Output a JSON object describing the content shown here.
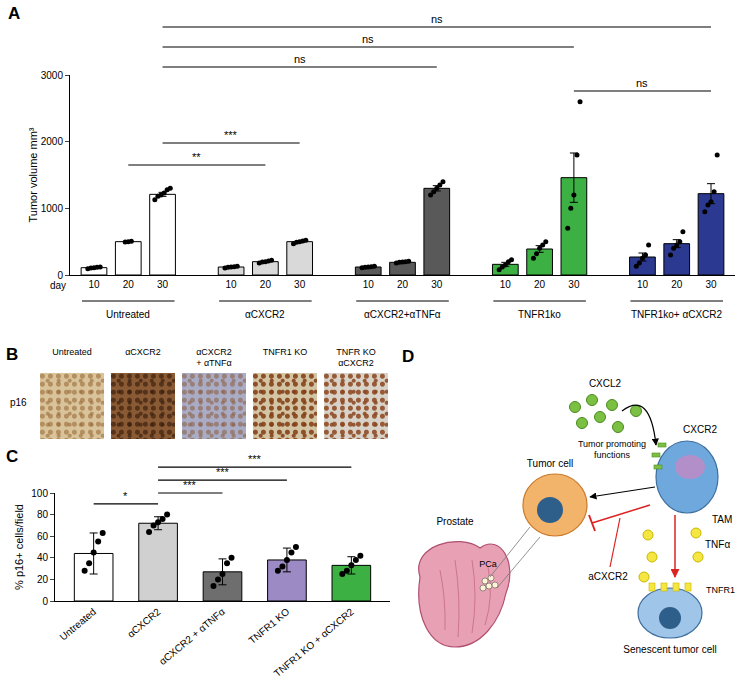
{
  "chart_data": [
    {
      "panel": "A",
      "type": "bar",
      "ylabel": "Tumor volume mm³",
      "xlabel": "day",
      "ylim": [
        0,
        3000
      ],
      "yticks": [
        0,
        1000,
        2000,
        3000
      ],
      "grid": false,
      "marker": "circle",
      "categories": [
        "10",
        "20",
        "30"
      ],
      "series": [
        {
          "name": "Untreated",
          "colors": [
            "#ffffff",
            "#ffffff",
            "#ffffff"
          ],
          "values": [
            110,
            500,
            1210
          ],
          "errors": [
            6,
            4,
            30
          ],
          "points": [
            [
              95,
              105,
              110,
              115,
              120
            ],
            [
              495,
              500,
              505
            ],
            [
              1130,
              1180,
              1200,
              1230,
              1280,
              1300
            ]
          ]
        },
        {
          "name": "αCXCR2",
          "colors": [
            "#d9d9d9",
            "#d9d9d9",
            "#d9d9d9"
          ],
          "values": [
            120,
            200,
            500
          ],
          "errors": [
            5,
            8,
            10
          ],
          "points": [
            [
              105,
              115,
              120,
              125,
              130
            ],
            [
              180,
              195,
              200,
              210,
              220
            ],
            [
              470,
              490,
              500,
              510,
              520
            ]
          ]
        },
        {
          "name": "αCXCR2+αTNFα",
          "colors": [
            "#595959",
            "#595959",
            "#595959"
          ],
          "values": [
            120,
            190,
            1300
          ],
          "errors": [
            4,
            5,
            40
          ],
          "points": [
            [
              110,
              115,
              120,
              125,
              130
            ],
            [
              180,
              190,
              195,
              200,
              205
            ],
            [
              1200,
              1250,
              1300,
              1350,
              1400
            ]
          ]
        },
        {
          "name": "TNFR1ko",
          "colors": [
            "#3cb043",
            "#3cb043",
            "#3cb043"
          ],
          "values": [
            160,
            390,
            1460
          ],
          "errors": [
            30,
            50,
            370
          ],
          "points": [
            [
              80,
              120,
              150,
              200,
              230
            ],
            [
              250,
              320,
              400,
              450,
              500
            ],
            [
              700,
              1000,
              1200,
              1800,
              2600
            ]
          ]
        },
        {
          "name": "TNFR1ko+ αCXCR2",
          "colors": [
            "#2b3990",
            "#2b3990",
            "#2b3990"
          ],
          "values": [
            270,
            470,
            1220
          ],
          "errors": [
            60,
            60,
            150
          ],
          "points": [
            [
              130,
              180,
              250,
              300,
              450
            ],
            [
              300,
              400,
              450,
              500,
              650
            ],
            [
              950,
              1050,
              1100,
              1250,
              1800
            ]
          ]
        }
      ],
      "comparisons": [
        {
          "from": [
            0,
            1
          ],
          "to": [
            1,
            1
          ],
          "label": "**"
        },
        {
          "from": [
            0,
            2
          ],
          "to": [
            1,
            2
          ],
          "label": "***"
        },
        {
          "from": [
            3,
            2
          ],
          "to": [
            4,
            2
          ],
          "label": "ns"
        },
        {
          "from": [
            0,
            2
          ],
          "to": [
            2,
            2
          ],
          "label": "ns"
        },
        {
          "from": [
            0,
            2
          ],
          "to": [
            3,
            2
          ],
          "label": "ns"
        },
        {
          "from": [
            0,
            2
          ],
          "to": [
            4,
            2
          ],
          "label": "ns"
        }
      ]
    },
    {
      "panel": "C",
      "type": "bar",
      "ylabel": "% p16+ cells/field",
      "ylim": [
        0,
        100
      ],
      "yticks": [
        0,
        20,
        40,
        60,
        80,
        100
      ],
      "grid": false,
      "marker": "circle",
      "categories": [
        "Untreated",
        "αCXCR2",
        "αCXCR2 + αTNFα",
        "TNFR1 KO",
        "TNFR1 KO + αCXCR2"
      ],
      "values": [
        44,
        72,
        27,
        38,
        33
      ],
      "errors": [
        19,
        6,
        12,
        11,
        8
      ],
      "colors": [
        "#ffffff",
        "#d0d0d0",
        "#6e6e6e",
        "#9b8ac4",
        "#3cb043"
      ],
      "points": [
        [
          28,
          35,
          45,
          55,
          63
        ],
        [
          64,
          70,
          73,
          76,
          80
        ],
        [
          14,
          20,
          25,
          35,
          40
        ],
        [
          28,
          32,
          38,
          45,
          50
        ],
        [
          25,
          28,
          33,
          38,
          42
        ]
      ],
      "comparisons": [
        {
          "from": 0,
          "to": 1,
          "label": "*"
        },
        {
          "from": 1,
          "to": 2,
          "label": "***"
        },
        {
          "from": 1,
          "to": 3,
          "label": "***"
        },
        {
          "from": 1,
          "to": 4,
          "label": "***"
        }
      ]
    }
  ],
  "image_panel": {
    "panel": "B",
    "row_label": "p16",
    "columns": [
      [
        "Untreated"
      ],
      [
        "αCXCR2"
      ],
      [
        "αCXCR2",
        "+ αTNFα"
      ],
      [
        "TNFR1 KO"
      ],
      [
        "TNFR KO",
        "αCXCR2"
      ]
    ]
  },
  "diagram": {
    "panel": "D",
    "texts": {
      "cxcl2": "CXCL2",
      "cxcr2": "CXCR2",
      "tumor_promoting": [
        "Tumor promoting",
        "functions"
      ],
      "tam": "TAM",
      "tumor_cell": "Tumor cell",
      "prostate": "Prostate",
      "pca": "PCa",
      "tnfa": "TNFα",
      "tnfr1": "TNFR1",
      "senescent": "Senescent tumor cell",
      "acxcr2": "aCXCR2"
    }
  }
}
